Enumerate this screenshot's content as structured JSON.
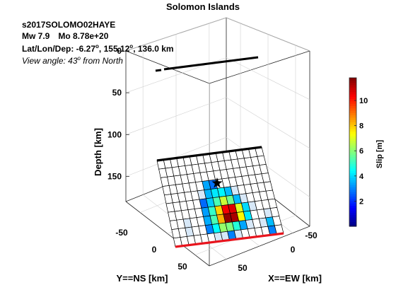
{
  "title": "Solomon Islands",
  "event": {
    "id": "s2017SOLOMO02HAYE",
    "mw_label": "Mw 7.9",
    "mo_label": "Mo 8.78e+20",
    "loc_label": "Lat/Lon/Dep:",
    "lat": "-6.27",
    "lon": "155.12",
    "dep": "136.0 km",
    "deg": "o",
    "view_prefix": "View angle:  43",
    "view_suffix": " from North"
  },
  "chart_data": {
    "type": "heatmap",
    "title": "Solomon Islands",
    "zlabel": "Depth [km]",
    "ylabel": "Y==NS [km]",
    "xlabel": "X==EW [km]",
    "depth_ticks": [
      "0",
      "50",
      "100",
      "150"
    ],
    "ns_ticks": [
      "-50",
      "0",
      "50"
    ],
    "ew_ticks": [
      "-50",
      "0",
      "50"
    ],
    "zlim": [
      0,
      180
    ],
    "xlim": [
      -75,
      75
    ],
    "ylim": [
      -75,
      75
    ],
    "grid": true,
    "colorbar": {
      "label": "Slip [m]",
      "ticks": [
        2,
        4,
        6,
        8,
        10
      ],
      "tick_labels": [
        "2",
        "4",
        "6",
        "8",
        "10"
      ],
      "range": [
        0,
        11.8
      ],
      "colormap": "jet"
    },
    "fault": {
      "strike_cells": 16,
      "dip_cells": 10,
      "top_edge_color": "#000000",
      "bottom_edge_color": "#e8141d",
      "hypocenter_marker": "star",
      "slip_m": [
        [
          0,
          0,
          0,
          0,
          0,
          0,
          0,
          0,
          0,
          0,
          0,
          0,
          0,
          0,
          0,
          0
        ],
        [
          0,
          0,
          0,
          0,
          0,
          0,
          0,
          0,
          0,
          0,
          0,
          0,
          0,
          0,
          0,
          0
        ],
        [
          0,
          0,
          0,
          0,
          0,
          0,
          0,
          0,
          0,
          0,
          0,
          0,
          0,
          0,
          0,
          0
        ],
        [
          0,
          0,
          0,
          0,
          0,
          0,
          2.3,
          1.6,
          0,
          0,
          0,
          0,
          0,
          0,
          0,
          0
        ],
        [
          0,
          0,
          0,
          0,
          0,
          1.2,
          2.5,
          3.2,
          3.4,
          2.6,
          1.2,
          0,
          0,
          0,
          0,
          0
        ],
        [
          0,
          0,
          0,
          0,
          0,
          1.5,
          2.8,
          4.5,
          6.2,
          5.0,
          2.6,
          1.2,
          0,
          0,
          0,
          0
        ],
        [
          0,
          0,
          0,
          0,
          0,
          2.2,
          4.2,
          7.5,
          10.5,
          10.8,
          6.5,
          3.0,
          1.2,
          0,
          0,
          0
        ],
        [
          0,
          0,
          1.0,
          0,
          0,
          2.4,
          4.5,
          8.0,
          11.8,
          11.5,
          7.0,
          3.2,
          0,
          0,
          1.4,
          0
        ],
        [
          0,
          0,
          1.2,
          0,
          0,
          1.8,
          3.5,
          5.5,
          5.2,
          4.0,
          2.3,
          1.0,
          0,
          1.2,
          2.6,
          0
        ],
        [
          0,
          0,
          0,
          0,
          0,
          0,
          1.2,
          1.4,
          1.8,
          0.6,
          0,
          0,
          0,
          0,
          1.8,
          0
        ]
      ]
    }
  }
}
